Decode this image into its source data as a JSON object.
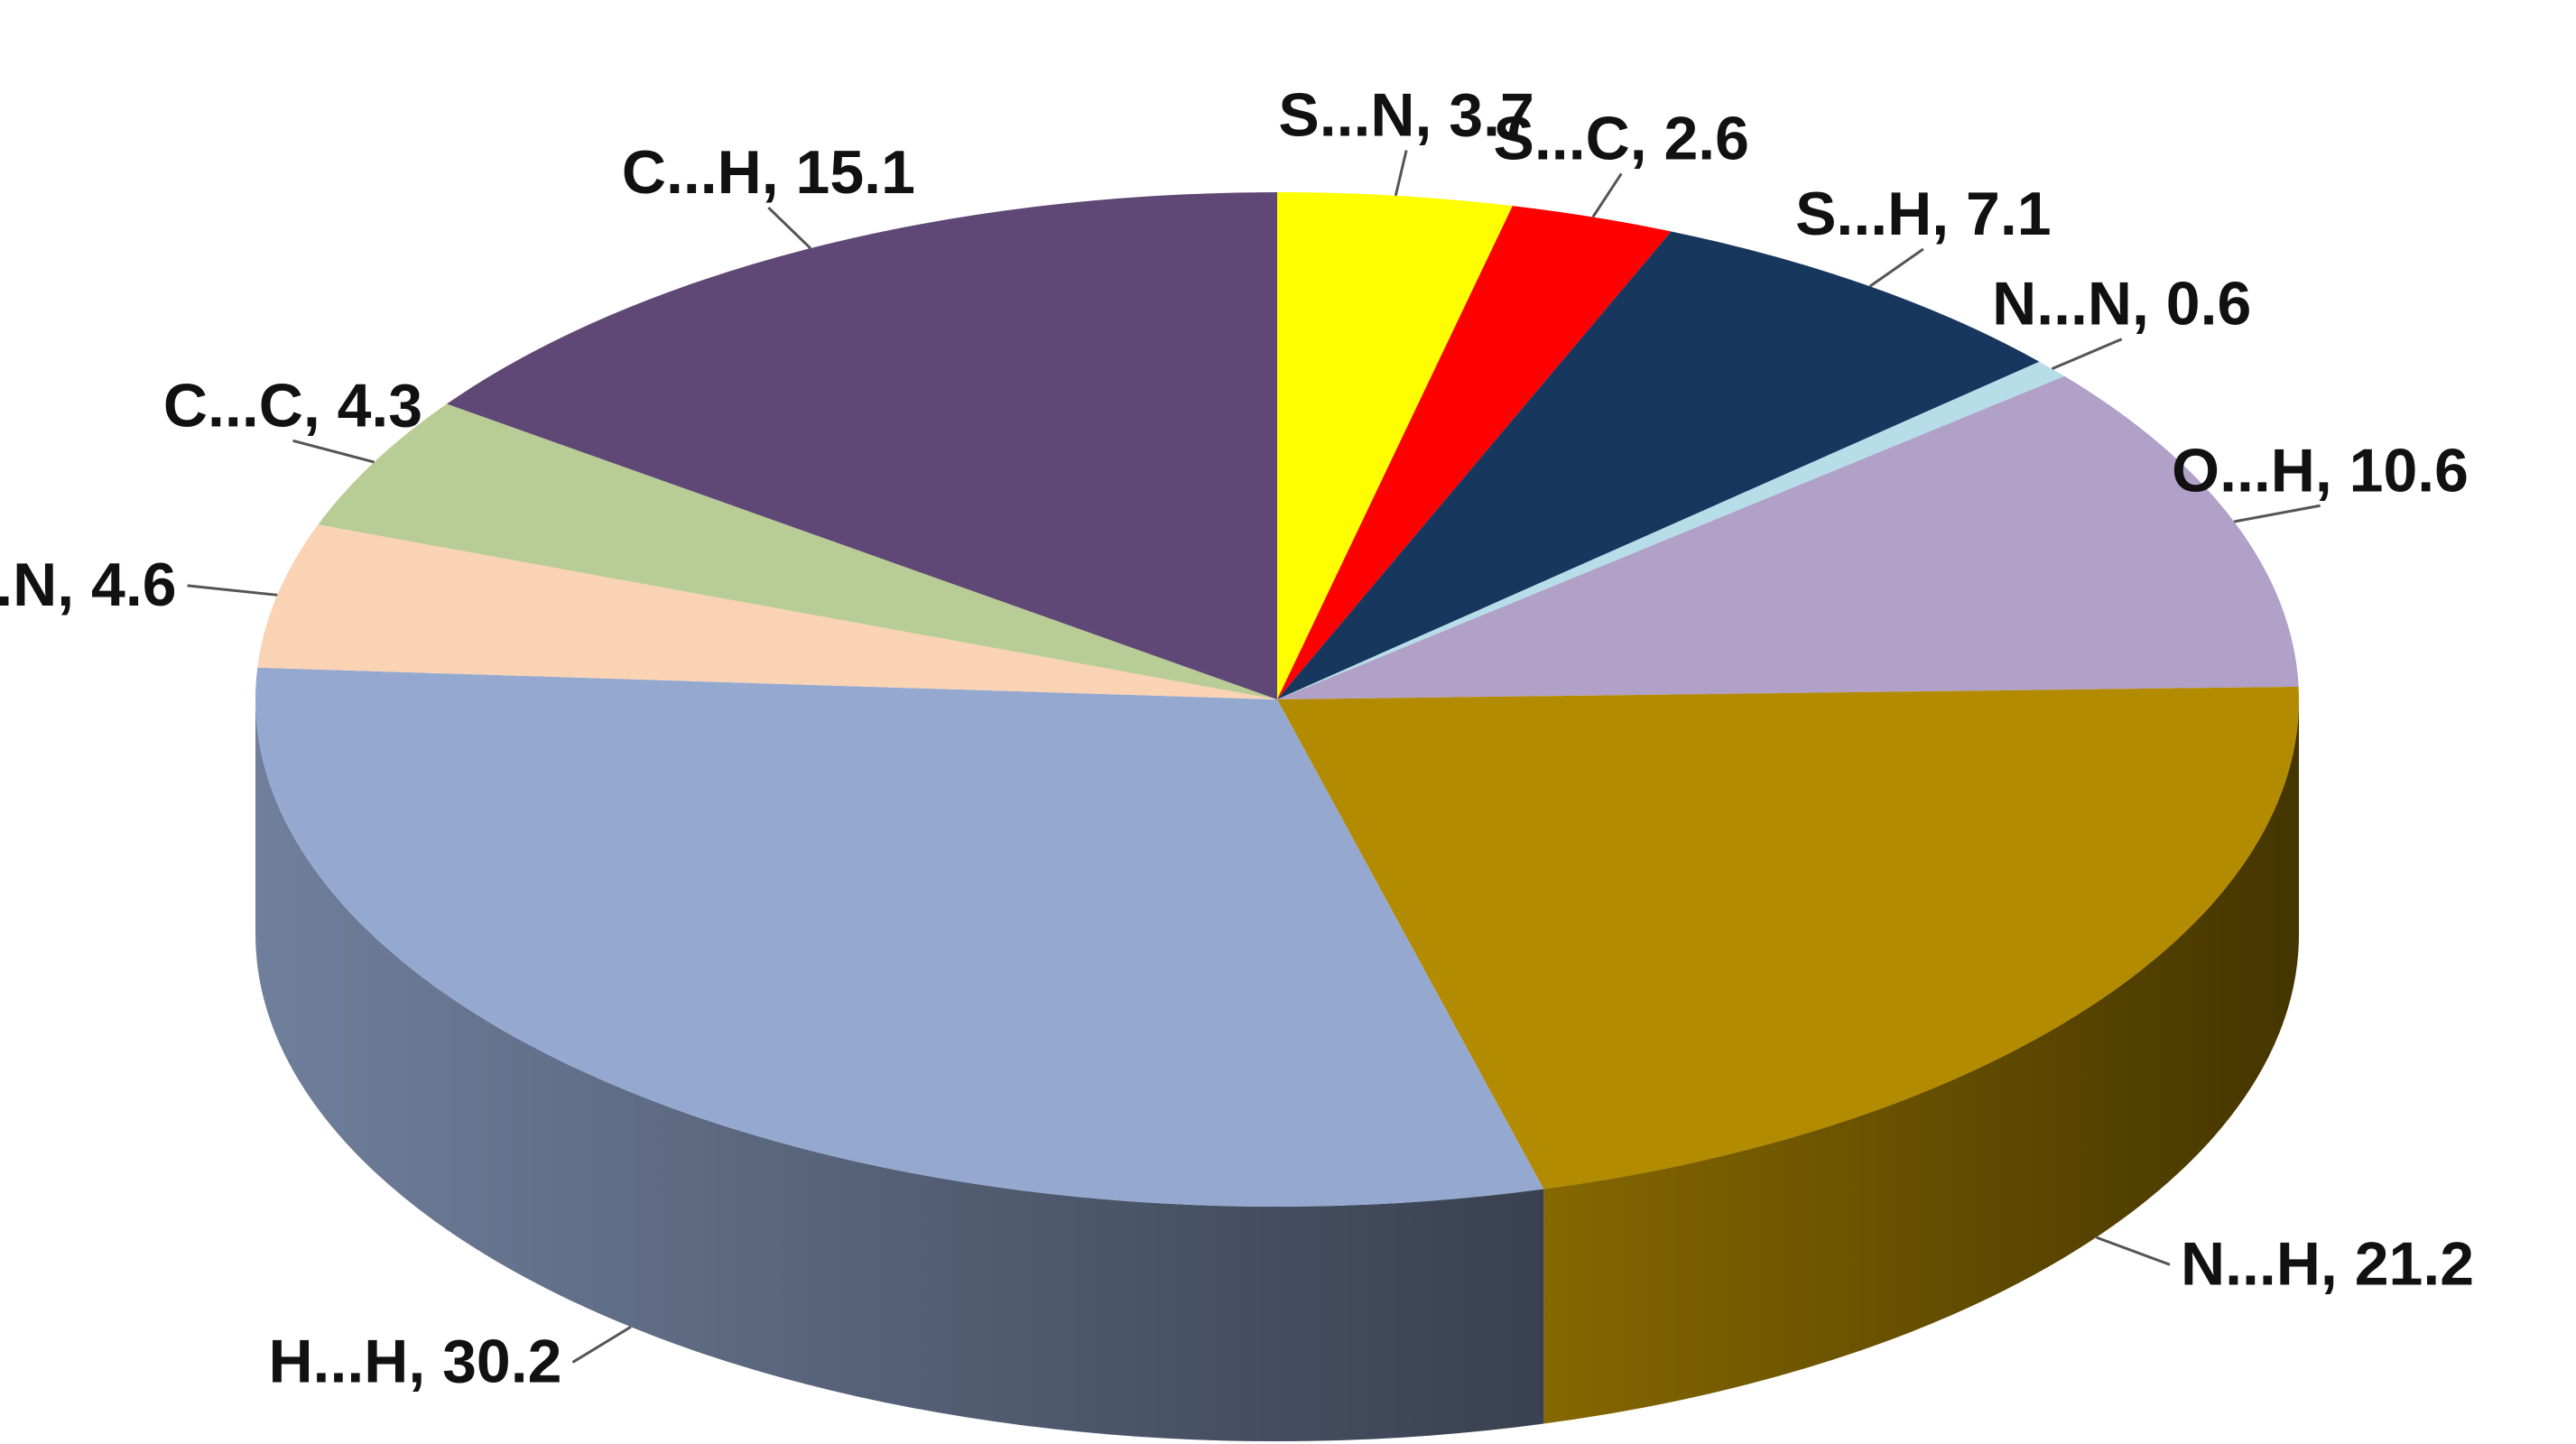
{
  "chart_data": {
    "type": "pie",
    "style": "3d",
    "title": "",
    "slices": [
      {
        "label": "S...N",
        "value": 3.7,
        "color": "#FFFF00"
      },
      {
        "label": "S...C",
        "value": 2.6,
        "color": "#FF0000"
      },
      {
        "label": "S...H",
        "value": 7.1,
        "color": "#17375E"
      },
      {
        "label": "N...N",
        "value": 0.6,
        "color": "#B7DEE8"
      },
      {
        "label": "O...H",
        "value": 10.6,
        "color": "#B1A0C7"
      },
      {
        "label": "N...H",
        "value": 21.2,
        "color": "#B38B00"
      },
      {
        "label": "H...H",
        "value": 30.2,
        "color": "#95A9D0"
      },
      {
        "label": "C...N",
        "value": 4.6,
        "color": "#FAD3B5"
      },
      {
        "label": "C...C",
        "value": 4.3,
        "color": "#B8CC95"
      },
      {
        "label": "C...H",
        "value": 15.1,
        "color": "#5F4875"
      }
    ],
    "data_labels": "category, value",
    "legend": "none"
  }
}
